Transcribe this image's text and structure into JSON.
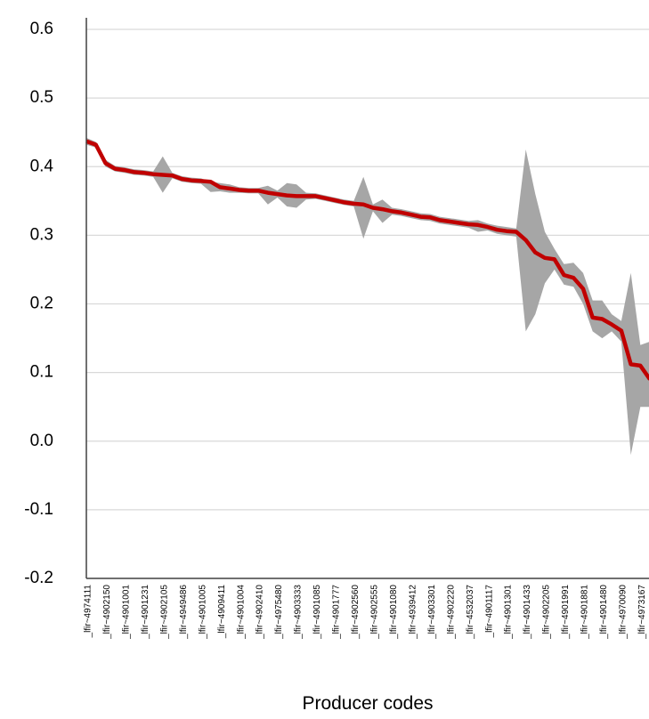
{
  "chart_data": {
    "type": "line",
    "x_label": "Producer codes",
    "categories": [
      "_lfir~4974111",
      null,
      "_lfir~4902150",
      null,
      "_lfir~4901001",
      null,
      "_lfir~4901231",
      null,
      "_lfir~4902105",
      null,
      "_lfir~4949486",
      null,
      "_lfir~4901005",
      null,
      "_lfir~4909411",
      null,
      "_lfir~4901004",
      null,
      "_lfir~4902410",
      null,
      "_lfir~4975480",
      null,
      "_lfir~4903333",
      null,
      "_lfir~4901085",
      null,
      "_lfir~4901777",
      null,
      "_lfir~4902560",
      null,
      "_lfir~4902555",
      null,
      "_lfir~4901080",
      null,
      "_lfir~4939412",
      null,
      "_lfir~4903301",
      null,
      "_lfir~4902220",
      null,
      "_lfir~4532037",
      null,
      "_lfir~4901117",
      null,
      "_lfir~4901301",
      null,
      "_lfir~4901433",
      null,
      "_lfir~4902205",
      null,
      "_lfir~4901991",
      null,
      "_lfir~4901881",
      null,
      "_lfir~4901480",
      null,
      "_lfir~4970090",
      null,
      "_lfir~4973167",
      null
    ],
    "series": [
      {
        "color": "#c00000",
        "values": [
          0.437,
          0.432,
          0.405,
          0.397,
          0.395,
          0.392,
          0.391,
          0.389,
          0.388,
          0.387,
          0.382,
          0.38,
          0.379,
          0.378,
          0.37,
          0.368,
          0.366,
          0.365,
          0.365,
          0.362,
          0.36,
          0.358,
          0.357,
          0.357,
          0.357,
          0.354,
          0.351,
          0.348,
          0.346,
          0.345,
          0.34,
          0.338,
          0.335,
          0.333,
          0.33,
          0.327,
          0.326,
          0.322,
          0.32,
          0.318,
          0.316,
          0.315,
          0.312,
          0.308,
          0.306,
          0.305,
          0.293,
          0.275,
          0.267,
          0.265,
          0.242,
          0.238,
          0.222,
          0.18,
          0.178,
          0.17,
          0.161,
          0.112,
          0.11,
          0.09
        ]
      }
    ],
    "band": {
      "color": "#a6a6a6",
      "lower": [
        0.432,
        0.428,
        0.4,
        0.393,
        0.391,
        0.388,
        0.387,
        0.385,
        0.362,
        0.383,
        0.378,
        0.376,
        0.375,
        0.363,
        0.364,
        0.362,
        0.362,
        0.361,
        0.361,
        0.345,
        0.355,
        0.342,
        0.34,
        0.352,
        0.353,
        0.35,
        0.347,
        0.344,
        0.342,
        0.295,
        0.335,
        0.318,
        0.33,
        0.328,
        0.325,
        0.322,
        0.321,
        0.317,
        0.315,
        0.313,
        0.311,
        0.305,
        0.307,
        0.302,
        0.3,
        0.298,
        0.16,
        0.185,
        0.23,
        0.25,
        0.228,
        0.225,
        0.2,
        0.16,
        0.15,
        0.16,
        0.145,
        -0.02,
        0.05,
        0.05
      ],
      "upper": [
        0.442,
        0.436,
        0.41,
        0.401,
        0.399,
        0.396,
        0.395,
        0.393,
        0.415,
        0.391,
        0.386,
        0.384,
        0.383,
        0.378,
        0.376,
        0.374,
        0.37,
        0.369,
        0.369,
        0.372,
        0.365,
        0.376,
        0.374,
        0.362,
        0.361,
        0.358,
        0.355,
        0.352,
        0.35,
        0.385,
        0.345,
        0.352,
        0.34,
        0.338,
        0.335,
        0.332,
        0.331,
        0.327,
        0.325,
        0.323,
        0.321,
        0.322,
        0.317,
        0.314,
        0.312,
        0.31,
        0.425,
        0.36,
        0.305,
        0.28,
        0.258,
        0.26,
        0.245,
        0.205,
        0.205,
        0.185,
        0.175,
        0.245,
        0.14,
        0.145
      ]
    },
    "ylim": [
      -0.2,
      0.6
    ],
    "yticks": [
      -0.2,
      -0.1,
      {
        "value": 0,
        "label": "0.0"
      },
      0.1,
      0.2,
      0.3,
      0.4,
      0.5,
      0.6
    ],
    "grid": true
  }
}
